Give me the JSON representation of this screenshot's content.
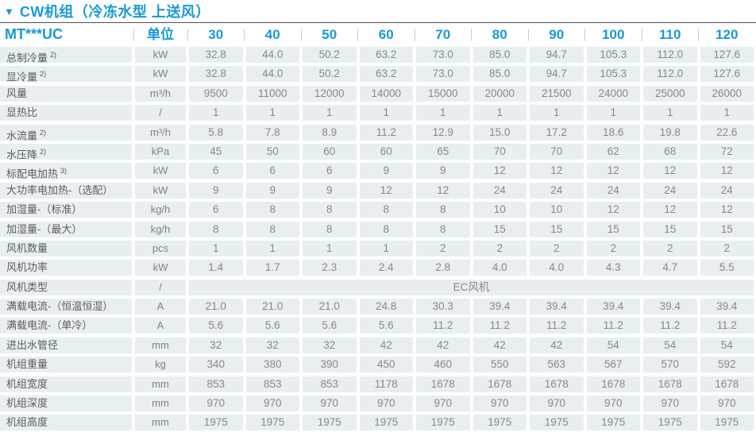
{
  "title": {
    "marker": "▼",
    "text": "CW机组（冷冻水型 上送风）"
  },
  "header": {
    "model": "MT***UC",
    "unit": "单位",
    "capacities": [
      "30",
      "40",
      "50",
      "60",
      "70",
      "80",
      "90",
      "100",
      "110",
      "120"
    ]
  },
  "rows": [
    {
      "label": "总制冷量",
      "sup": "2)",
      "unit": "kW",
      "values": [
        "32.8",
        "44.0",
        "50.2",
        "63.2",
        "73.0",
        "85.0",
        "94.7",
        "105.3",
        "112.0",
        "127.6"
      ]
    },
    {
      "label": "显冷量",
      "sup": "2)",
      "unit": "kW",
      "values": [
        "32.8",
        "44.0",
        "50.2",
        "63.2",
        "73.0",
        "85.0",
        "94.7",
        "105.3",
        "112.0",
        "127.6"
      ]
    },
    {
      "label": "风量",
      "sup": "",
      "unit": "m³/h",
      "values": [
        "9500",
        "11000",
        "12000",
        "14000",
        "15000",
        "20000",
        "21500",
        "24000",
        "25000",
        "26000"
      ]
    },
    {
      "label": "显热比",
      "sup": "",
      "unit": "/",
      "values": [
        "1",
        "1",
        "1",
        "1",
        "1",
        "1",
        "1",
        "1",
        "1",
        "1"
      ]
    },
    {
      "label": "水流量",
      "sup": "2)",
      "unit": "m³/h",
      "values": [
        "5.8",
        "7.8",
        "8.9",
        "11.2",
        "12.9",
        "15.0",
        "17.2",
        "18.6",
        "19.8",
        "22.6"
      ]
    },
    {
      "label": "水压降",
      "sup": "2)",
      "unit": "kPa",
      "values": [
        "45",
        "50",
        "60",
        "60",
        "65",
        "70",
        "70",
        "62",
        "68",
        "72"
      ]
    },
    {
      "label": "标配电加热",
      "sup": "3)",
      "unit": "kW",
      "values": [
        "6",
        "6",
        "6",
        "9",
        "9",
        "12",
        "12",
        "12",
        "12",
        "12"
      ]
    },
    {
      "label": "大功率电加热-（选配）",
      "sup": "",
      "unit": "kW",
      "values": [
        "9",
        "9",
        "9",
        "12",
        "12",
        "24",
        "24",
        "24",
        "24",
        "24"
      ]
    },
    {
      "label": "加湿量-（标准）",
      "sup": "",
      "unit": "kg/h",
      "values": [
        "6",
        "8",
        "8",
        "8",
        "8",
        "10",
        "10",
        "12",
        "12",
        "12"
      ]
    },
    {
      "label": "加湿量-（最大）",
      "sup": "",
      "unit": "kg/h",
      "values": [
        "8",
        "8",
        "8",
        "8",
        "8",
        "15",
        "15",
        "15",
        "15",
        "15"
      ]
    },
    {
      "label": "风机数量",
      "sup": "",
      "unit": "pcs",
      "values": [
        "1",
        "1",
        "1",
        "1",
        "2",
        "2",
        "2",
        "2",
        "2",
        "2"
      ]
    },
    {
      "label": "风机功率",
      "sup": "",
      "unit": "kW",
      "values": [
        "1.4",
        "1.7",
        "2.3",
        "2.4",
        "2.8",
        "4.0",
        "4.0",
        "4.3",
        "4.7",
        "5.5"
      ]
    },
    {
      "label": "风机类型",
      "sup": "",
      "unit": "/",
      "merged": "EC风机"
    },
    {
      "label": "满载电流-（恒温恒湿）",
      "sup": "",
      "unit": "A",
      "values": [
        "21.0",
        "21.0",
        "21.0",
        "24.8",
        "30.3",
        "39.4",
        "39.4",
        "39.4",
        "39.4",
        "39.4"
      ]
    },
    {
      "label": "满载电流-（单冷）",
      "sup": "",
      "unit": "A",
      "values": [
        "5.6",
        "5.6",
        "5.6",
        "5.6",
        "11.2",
        "11.2",
        "11.2",
        "11.2",
        "11.2",
        "11.2"
      ]
    },
    {
      "label": "进出水管径",
      "sup": "",
      "unit": "mm",
      "values": [
        "32",
        "32",
        "32",
        "42",
        "42",
        "42",
        "42",
        "54",
        "54",
        "54"
      ]
    },
    {
      "label": "机组重量",
      "sup": "",
      "unit": "kg",
      "values": [
        "340",
        "380",
        "390",
        "450",
        "460",
        "550",
        "563",
        "567",
        "570",
        "592"
      ]
    },
    {
      "label": "机组宽度",
      "sup": "",
      "unit": "mm",
      "values": [
        "853",
        "853",
        "853",
        "1178",
        "1678",
        "1678",
        "1678",
        "1678",
        "1678",
        "1678"
      ]
    },
    {
      "label": "机组深度",
      "sup": "",
      "unit": "mm",
      "values": [
        "970",
        "970",
        "970",
        "970",
        "970",
        "970",
        "970",
        "970",
        "970",
        "970"
      ]
    },
    {
      "label": "机组高度",
      "sup": "",
      "unit": "mm",
      "values": [
        "1975",
        "1975",
        "1975",
        "1975",
        "1975",
        "1975",
        "1975",
        "1975",
        "1975",
        "1975"
      ]
    }
  ],
  "colors": {
    "accent_blue": "#1899d6",
    "cell_background": "#e8eff0",
    "label_text": "#585e62",
    "value_text": "#85898d",
    "title_rule": "#4e5054",
    "header_separator": "#c7ccce"
  }
}
